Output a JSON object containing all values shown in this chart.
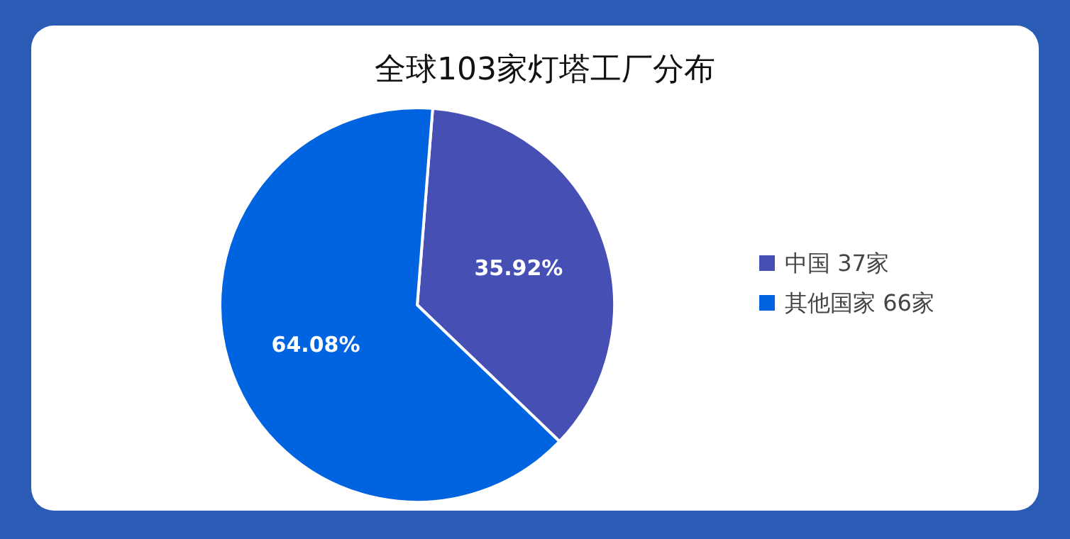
{
  "chart_data": {
    "type": "pie",
    "title": "全球103家灯塔工厂分布",
    "categories": [
      "中国 37家",
      "其他国家 66家"
    ],
    "values": [
      35.92,
      64.08
    ],
    "value_labels": [
      "35.92%",
      "64.08%"
    ],
    "colors": [
      "#4650b4",
      "#0063e0"
    ],
    "legend": "right"
  }
}
